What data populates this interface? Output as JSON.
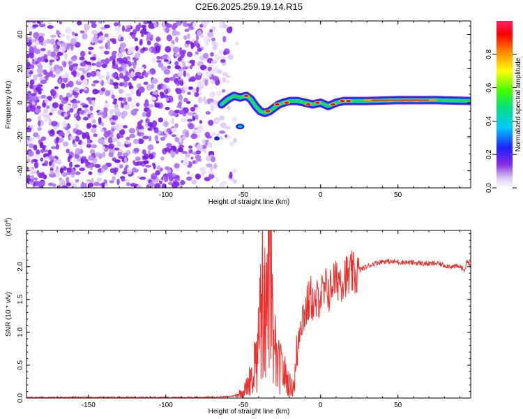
{
  "title": "C2E6.2025.259.19.14.R15",
  "chart_data": [
    {
      "type": "heatmap",
      "xlabel": "Height of straight line (km)",
      "ylabel": "Frequency (Hz)",
      "xlim": [
        -190,
        97
      ],
      "ylim": [
        -50,
        48
      ],
      "xticks": [
        -150,
        -100,
        -50,
        0,
        50
      ],
      "yticks": [
        -40,
        -20,
        0,
        20,
        40
      ],
      "colorbar": {
        "label": "Normalized spectral amplitude",
        "range": [
          0,
          1
        ],
        "ticks": [
          "0.0",
          "0.2",
          "0.4",
          "0.6",
          "0.8"
        ],
        "colormap": "rainbow (purple to red)"
      },
      "noise_region_x": [
        -190,
        -55
      ],
      "ridge": [
        [
          -64,
          -1
        ],
        [
          -60,
          2
        ],
        [
          -56,
          4
        ],
        [
          -52,
          3
        ],
        [
          -48,
          4
        ],
        [
          -45,
          2
        ],
        [
          -42,
          -2
        ],
        [
          -39,
          -5
        ],
        [
          -36,
          -6
        ],
        [
          -33,
          -5
        ],
        [
          -30,
          -3
        ],
        [
          -27,
          -1
        ],
        [
          -24,
          0
        ],
        [
          -20,
          1
        ],
        [
          -15,
          1
        ],
        [
          -10,
          0
        ],
        [
          -5,
          -1
        ],
        [
          0,
          0
        ],
        [
          5,
          -2
        ],
        [
          10,
          0
        ],
        [
          15,
          1
        ],
        [
          20,
          1
        ],
        [
          30,
          1
        ],
        [
          50,
          1.5
        ],
        [
          75,
          1.5
        ],
        [
          97,
          1
        ]
      ]
    },
    {
      "type": "line",
      "xlabel": "Height of straight line (km)",
      "ylabel": "SNR (10 * v/v)",
      "yscale_note": "(x10^4)",
      "xlim": [
        -190,
        97
      ],
      "ylim": [
        0,
        2.55
      ],
      "xticks": [
        -150,
        -100,
        -50,
        0,
        50
      ],
      "yticks": [
        "0.0",
        "0.5",
        "1.0",
        "1.5",
        "2.0"
      ],
      "color": "#e8302e",
      "series": [
        {
          "x": [
            -190,
            -150,
            -100,
            -75,
            -60,
            -55,
            -50,
            -47,
            -44,
            -42,
            -40,
            -38,
            -36,
            -35,
            -34,
            -33,
            -32,
            -31,
            -30,
            -29,
            -28,
            -26,
            -24,
            -22,
            -20,
            -18,
            -16,
            -15,
            -14,
            -13,
            -12,
            -10,
            -8,
            -6,
            -4,
            -2,
            0,
            2,
            4,
            6,
            8,
            10,
            12,
            14,
            16,
            18,
            20,
            22,
            25,
            30,
            35,
            40,
            50,
            60,
            70,
            75,
            80,
            85,
            90,
            93,
            95,
            97
          ],
          "y": [
            0.01,
            0.01,
            0.01,
            0.01,
            0.02,
            0.04,
            0.1,
            0.2,
            0.4,
            0.6,
            0.8,
            1.5,
            1.95,
            1.2,
            2.1,
            2.5,
            1.6,
            0.9,
            0.6,
            0.8,
            0.5,
            0.45,
            0.4,
            0.3,
            0.2,
            0.15,
            0.4,
            0.7,
            1.0,
            1.2,
            1.25,
            1.3,
            1.45,
            1.55,
            1.35,
            1.5,
            1.6,
            1.55,
            1.7,
            1.6,
            1.8,
            1.75,
            1.85,
            1.8,
            1.9,
            1.8,
            1.9,
            1.85,
            1.95,
            2.0,
            2.05,
            2.08,
            2.07,
            2.06,
            2.04,
            2.05,
            2.02,
            2.0,
            2.0,
            1.95,
            2.1,
            2.0
          ]
        }
      ]
    }
  ]
}
